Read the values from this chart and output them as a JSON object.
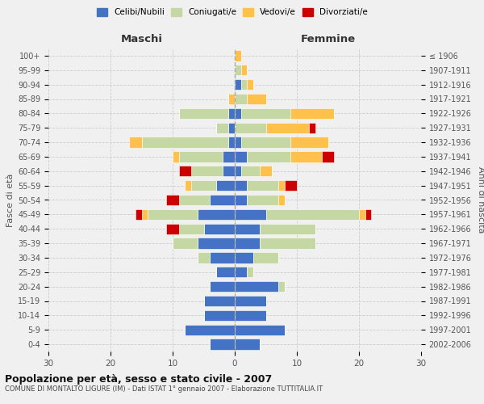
{
  "age_groups": [
    "0-4",
    "5-9",
    "10-14",
    "15-19",
    "20-24",
    "25-29",
    "30-34",
    "35-39",
    "40-44",
    "45-49",
    "50-54",
    "55-59",
    "60-64",
    "65-69",
    "70-74",
    "75-79",
    "80-84",
    "85-89",
    "90-94",
    "95-99",
    "100+"
  ],
  "birth_years": [
    "2002-2006",
    "1997-2001",
    "1992-1996",
    "1987-1991",
    "1982-1986",
    "1977-1981",
    "1972-1976",
    "1967-1971",
    "1962-1966",
    "1957-1961",
    "1952-1956",
    "1947-1951",
    "1942-1946",
    "1937-1941",
    "1932-1936",
    "1927-1931",
    "1922-1926",
    "1917-1921",
    "1912-1916",
    "1907-1911",
    "≤ 1906"
  ],
  "colors": {
    "celibi": "#4472c4",
    "coniugati": "#c5d8a4",
    "vedovi": "#ffc04c",
    "divorziati": "#cc0000"
  },
  "maschi": {
    "celibi": [
      4,
      8,
      5,
      5,
      4,
      3,
      4,
      6,
      5,
      6,
      4,
      3,
      2,
      2,
      1,
      1,
      1,
      0,
      0,
      0,
      0
    ],
    "coniugati": [
      0,
      0,
      0,
      0,
      0,
      0,
      2,
      4,
      4,
      8,
      5,
      4,
      5,
      7,
      14,
      2,
      8,
      0,
      0,
      0,
      0
    ],
    "vedovi": [
      0,
      0,
      0,
      0,
      0,
      0,
      0,
      0,
      0,
      1,
      0,
      1,
      0,
      1,
      2,
      0,
      0,
      1,
      0,
      0,
      0
    ],
    "divorziati": [
      0,
      0,
      0,
      0,
      0,
      0,
      0,
      0,
      2,
      1,
      2,
      0,
      2,
      0,
      0,
      0,
      0,
      0,
      0,
      0,
      0
    ]
  },
  "femmine": {
    "celibi": [
      4,
      8,
      5,
      5,
      7,
      2,
      3,
      4,
      4,
      5,
      2,
      2,
      1,
      2,
      1,
      0,
      1,
      0,
      1,
      0,
      0
    ],
    "coniugati": [
      0,
      0,
      0,
      0,
      1,
      1,
      4,
      9,
      9,
      15,
      5,
      5,
      3,
      7,
      8,
      5,
      8,
      2,
      1,
      1,
      0
    ],
    "vedovi": [
      0,
      0,
      0,
      0,
      0,
      0,
      0,
      0,
      0,
      1,
      1,
      1,
      2,
      5,
      6,
      7,
      7,
      3,
      1,
      1,
      1
    ],
    "divorziati": [
      0,
      0,
      0,
      0,
      0,
      0,
      0,
      0,
      0,
      1,
      0,
      2,
      0,
      2,
      0,
      1,
      0,
      0,
      0,
      0,
      0
    ]
  },
  "title": "Popolazione per età, sesso e stato civile - 2007",
  "subtitle": "COMUNE DI MONTALTO LIGURE (IM) - Dati ISTAT 1° gennaio 2007 - Elaborazione TUTTITALIA.IT",
  "xlabel_left": "Maschi",
  "xlabel_right": "Femmine",
  "ylabel_left": "Fasce di età",
  "ylabel_right": "Anni di nascita",
  "xlim": 30,
  "legend_labels": [
    "Celibi/Nubili",
    "Coniugati/e",
    "Vedovi/e",
    "Divorziati/e"
  ],
  "bg_color": "#f0f0f0",
  "grid_color": "#cccccc"
}
